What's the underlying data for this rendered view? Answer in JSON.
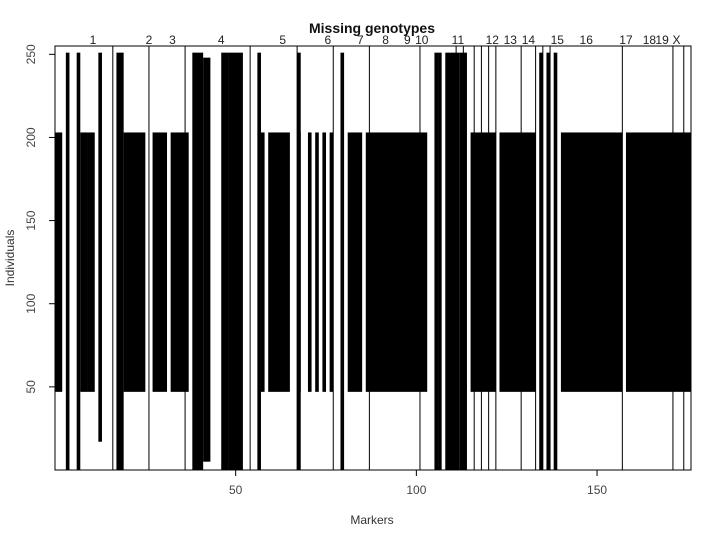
{
  "chart_data": {
    "type": "heatmap",
    "title": "Missing genotypes",
    "xlabel": "Markers",
    "ylabel": "Individuals",
    "xlim": [
      0,
      176
    ],
    "ylim": [
      0,
      255
    ],
    "xticks": [
      50,
      100,
      150
    ],
    "yticks": [
      50,
      100,
      150,
      200,
      250
    ],
    "grid": false,
    "missing_color": "#000000",
    "observed_color": "#ffffff",
    "chromosome_boundaries": [
      16,
      26,
      36,
      54,
      67,
      77,
      87,
      101,
      111,
      113,
      116,
      118,
      120,
      122,
      129,
      133,
      135,
      137,
      157,
      171,
      174
    ],
    "chromosomes": [
      {
        "label": "1",
        "position": 10.5
      },
      {
        "label": "2",
        "position": 26
      },
      {
        "label": "3",
        "position": 32.5
      },
      {
        "label": "4",
        "position": 46
      },
      {
        "label": "5",
        "position": 63
      },
      {
        "label": "6",
        "position": 75.5
      },
      {
        "label": "7",
        "position": 84.5
      },
      {
        "label": "8",
        "position": 91.5
      },
      {
        "label": "9",
        "position": 97.5
      },
      {
        "label": "10",
        "position": 101.5
      },
      {
        "label": "11",
        "position": 111.5
      },
      {
        "label": "12",
        "position": 121
      },
      {
        "label": "13",
        "position": 126
      },
      {
        "label": "14",
        "position": 131
      },
      {
        "label": "15",
        "position": 139
      },
      {
        "label": "16",
        "position": 147
      },
      {
        "label": "17",
        "position": 158
      },
      {
        "label": "18",
        "position": 164.5
      },
      {
        "label": "19",
        "position": 168
      },
      {
        "label": "X",
        "position": 172
      }
    ],
    "missing_blocks": [
      {
        "x_start": 0,
        "x_end": 2,
        "y_start": 47,
        "y_end": 203
      },
      {
        "x_start": 7,
        "x_end": 9,
        "y_start": 47,
        "y_end": 203
      },
      {
        "x_start": 9,
        "x_end": 11,
        "y_start": 47,
        "y_end": 203
      },
      {
        "x_start": 19,
        "x_end": 25,
        "y_start": 47,
        "y_end": 203
      },
      {
        "x_start": 27,
        "x_end": 31,
        "y_start": 47,
        "y_end": 203
      },
      {
        "x_start": 32,
        "x_end": 37,
        "y_start": 47,
        "y_end": 203
      },
      {
        "x_start": 57,
        "x_end": 58,
        "y_start": 47,
        "y_end": 203
      },
      {
        "x_start": 59,
        "x_end": 65,
        "y_start": 47,
        "y_end": 203
      },
      {
        "x_start": 67,
        "x_end": 68,
        "y_start": 47,
        "y_end": 203
      },
      {
        "x_start": 70,
        "x_end": 71,
        "y_start": 47,
        "y_end": 203
      },
      {
        "x_start": 72,
        "x_end": 73,
        "y_start": 47,
        "y_end": 203
      },
      {
        "x_start": 74,
        "x_end": 75,
        "y_start": 47,
        "y_end": 203
      },
      {
        "x_start": 76,
        "x_end": 77,
        "y_start": 47,
        "y_end": 203
      },
      {
        "x_start": 81,
        "x_end": 85,
        "y_start": 47,
        "y_end": 203
      },
      {
        "x_start": 86,
        "x_end": 103,
        "y_start": 47,
        "y_end": 203
      },
      {
        "x_start": 115,
        "x_end": 122,
        "y_start": 47,
        "y_end": 203
      },
      {
        "x_start": 123,
        "x_end": 133,
        "y_start": 47,
        "y_end": 203
      },
      {
        "x_start": 140,
        "x_end": 157,
        "y_start": 47,
        "y_end": 203
      },
      {
        "x_start": 158,
        "x_end": 176,
        "y_start": 47,
        "y_end": 203
      },
      {
        "x_start": 3,
        "x_end": 4,
        "y_start": 0,
        "y_end": 251
      },
      {
        "x_start": 6,
        "x_end": 7,
        "y_start": 0,
        "y_end": 251
      },
      {
        "x_start": 12,
        "x_end": 13,
        "y_start": 17,
        "y_end": 251
      },
      {
        "x_start": 17,
        "x_end": 19,
        "y_start": 0,
        "y_end": 251
      },
      {
        "x_start": 38,
        "x_end": 41,
        "y_start": 0,
        "y_end": 251
      },
      {
        "x_start": 41,
        "x_end": 43,
        "y_start": 5,
        "y_end": 248
      },
      {
        "x_start": 46,
        "x_end": 48,
        "y_start": 0,
        "y_end": 251
      },
      {
        "x_start": 48,
        "x_end": 52,
        "y_start": 0,
        "y_end": 251
      },
      {
        "x_start": 56,
        "x_end": 57,
        "y_start": 0,
        "y_end": 251
      },
      {
        "x_start": 67,
        "x_end": 68,
        "y_start": 0,
        "y_end": 251
      },
      {
        "x_start": 79,
        "x_end": 80,
        "y_start": 0,
        "y_end": 251
      },
      {
        "x_start": 105,
        "x_end": 106,
        "y_start": 0,
        "y_end": 251
      },
      {
        "x_start": 106,
        "x_end": 107,
        "y_start": 0,
        "y_end": 251
      },
      {
        "x_start": 108,
        "x_end": 110,
        "y_start": 0,
        "y_end": 251
      },
      {
        "x_start": 110,
        "x_end": 111,
        "y_start": 0,
        "y_end": 251
      },
      {
        "x_start": 111,
        "x_end": 112,
        "y_start": 0,
        "y_end": 251
      },
      {
        "x_start": 112,
        "x_end": 114,
        "y_start": 0,
        "y_end": 251
      },
      {
        "x_start": 134,
        "x_end": 135,
        "y_start": 0,
        "y_end": 251
      },
      {
        "x_start": 136,
        "x_end": 137,
        "y_start": 0,
        "y_end": 251
      },
      {
        "x_start": 138,
        "x_end": 139,
        "y_start": 0,
        "y_end": 251
      }
    ]
  }
}
